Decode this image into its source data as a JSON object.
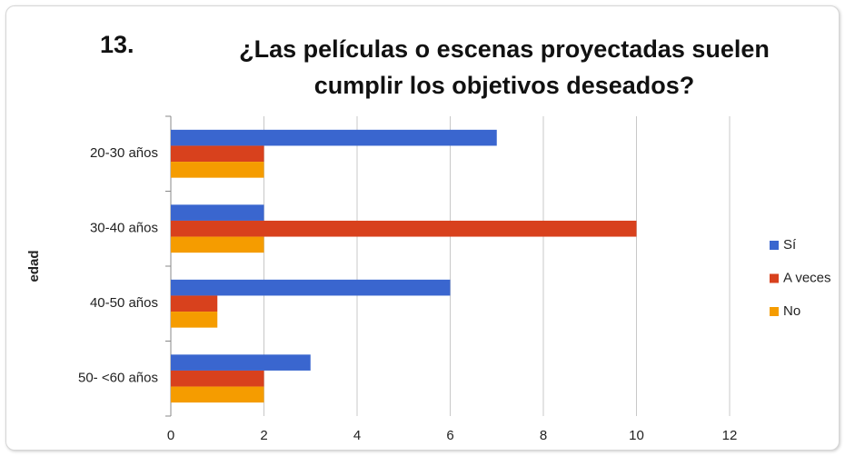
{
  "chart_data": {
    "type": "hbar",
    "title_number": "13.",
    "title": "¿Las películas o escenas proyectadas suelen cumplir los objetivos deseados?",
    "y_label": "edad",
    "categories": [
      "20-30 años",
      "30-40 años",
      "40-50 años",
      "50- <60 años"
    ],
    "series": [
      {
        "name": "Sí",
        "color": "#3a66cf",
        "values": [
          7,
          2,
          6,
          3
        ]
      },
      {
        "name": "A veces",
        "color": "#d8411d",
        "values": [
          2,
          10,
          1,
          2
        ]
      },
      {
        "name": "No",
        "color": "#f59c00",
        "values": [
          2,
          2,
          1,
          2
        ]
      }
    ],
    "xlim": [
      0,
      12
    ],
    "xticks": [
      0,
      2,
      4,
      6,
      8,
      10,
      12
    ],
    "grid": true,
    "legend": "right"
  }
}
